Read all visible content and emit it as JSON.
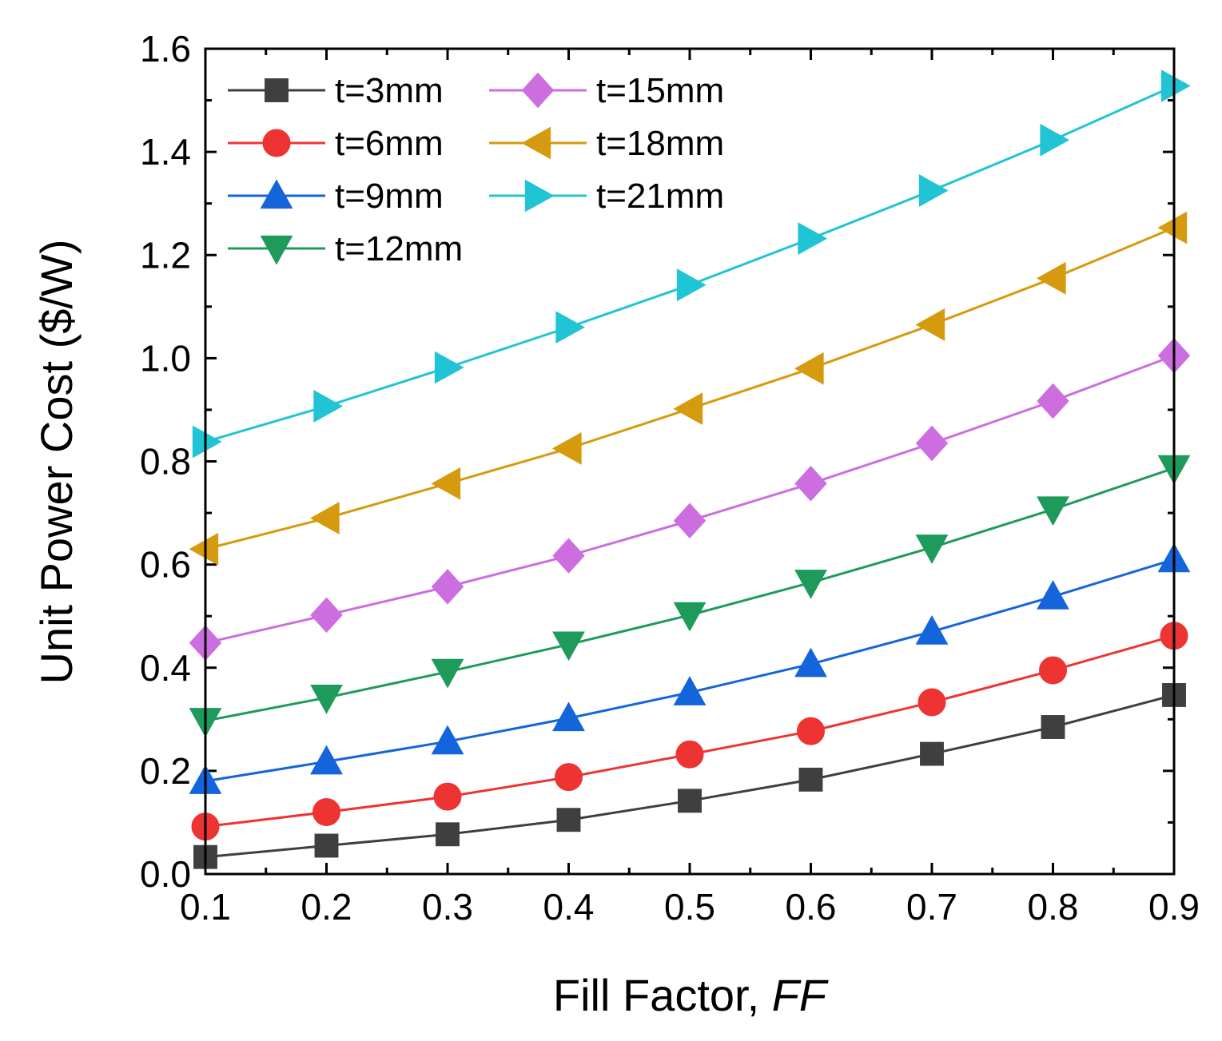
{
  "chart_data": {
    "type": "line",
    "title": "",
    "xlabel": "Fill Factor, ",
    "xlabel_italic": "FF",
    "ylabel": "Unit Power Cost ($/W)",
    "xlim": [
      0.1,
      0.9
    ],
    "ylim": [
      0.0,
      1.6
    ],
    "xticks": [
      "0.1",
      "0.2",
      "0.3",
      "0.4",
      "0.5",
      "0.6",
      "0.7",
      "0.8",
      "0.9"
    ],
    "yticks": [
      "0.0",
      "0.2",
      "0.4",
      "0.6",
      "0.8",
      "1.0",
      "1.2",
      "1.4",
      "1.6"
    ],
    "x": [
      0.1,
      0.2,
      0.3,
      0.4,
      0.5,
      0.6,
      0.7,
      0.8,
      0.9
    ],
    "legend_position": "top-left",
    "series": [
      {
        "name": "t=3mm",
        "color": "#3f3f3f",
        "marker": "square",
        "values": [
          0.033,
          0.055,
          0.077,
          0.105,
          0.142,
          0.183,
          0.233,
          0.285,
          0.347
        ]
      },
      {
        "name": "t=6mm",
        "color": "#ee3333",
        "marker": "circle",
        "values": [
          0.092,
          0.12,
          0.15,
          0.188,
          0.232,
          0.277,
          0.333,
          0.395,
          0.462
        ]
      },
      {
        "name": "t=9mm",
        "color": "#1464dc",
        "marker": "triangle-up",
        "values": [
          0.18,
          0.218,
          0.257,
          0.302,
          0.352,
          0.407,
          0.47,
          0.538,
          0.61
        ]
      },
      {
        "name": "t=12mm",
        "color": "#1e9a5a",
        "marker": "triangle-down",
        "values": [
          0.297,
          0.342,
          0.392,
          0.445,
          0.502,
          0.565,
          0.633,
          0.707,
          0.787
        ]
      },
      {
        "name": "t=15mm",
        "color": "#cc6ee0",
        "marker": "diamond",
        "values": [
          0.448,
          0.502,
          0.557,
          0.617,
          0.685,
          0.757,
          0.835,
          0.917,
          1.005
        ]
      },
      {
        "name": "t=18mm",
        "color": "#d69a0e",
        "marker": "triangle-left",
        "values": [
          0.63,
          0.69,
          0.757,
          0.825,
          0.902,
          0.98,
          1.065,
          1.155,
          1.253
        ]
      },
      {
        "name": "t=21mm",
        "color": "#20c4d4",
        "marker": "triangle-right",
        "values": [
          0.838,
          0.907,
          0.982,
          1.06,
          1.142,
          1.232,
          1.325,
          1.423,
          1.528
        ]
      }
    ]
  }
}
